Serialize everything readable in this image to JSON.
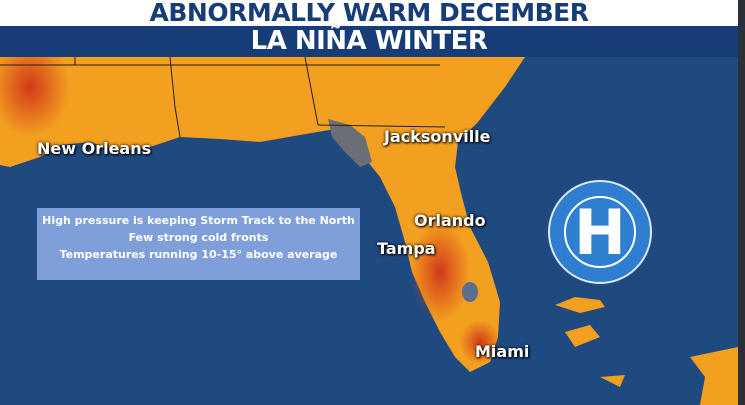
{
  "header": {
    "title": "ABNORMALLY WARM DECEMBER",
    "subtitle": "LA NIÑA WINTER"
  },
  "cities": [
    {
      "name": "New Orleans"
    },
    {
      "name": "Jacksonville"
    },
    {
      "name": "Orlando"
    },
    {
      "name": "Tampa"
    },
    {
      "name": "Miami"
    }
  ],
  "info_box": {
    "lines": [
      "High pressure is keeping Storm Track to the North",
      "Few strong  cold fronts",
      "Temperatures running 10-15° above average"
    ]
  },
  "pressure_system": {
    "label": "H",
    "type": "high-pressure-icon"
  },
  "colors": {
    "brand_blue": "#163d78",
    "ocean": "#1f4a80",
    "land_warm": "#f29a1e",
    "land_hot": "#d9441c",
    "info_box": "#7f9fdb",
    "high_circle": "#2f7fd0"
  }
}
